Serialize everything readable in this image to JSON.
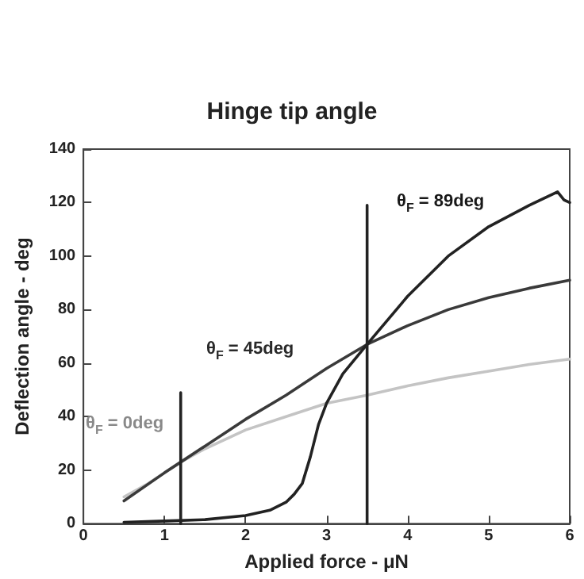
{
  "chart_data": {
    "type": "line",
    "title": "Hinge tip angle",
    "xlabel": "Applied force - μN",
    "ylabel": "Deflection angle - deg",
    "xlim": [
      0,
      6
    ],
    "xticks": [
      0,
      1,
      2,
      3,
      4,
      5,
      6
    ],
    "ylim": [
      0,
      140
    ],
    "yticks": [
      0,
      20,
      40,
      60,
      80,
      100,
      120,
      140
    ],
    "grid": false,
    "marker": "none",
    "line_style": "solid",
    "series": [
      {
        "color": "#c4c4c4",
        "x": [
          0.5,
          0.8,
          1.0,
          1.2,
          1.5,
          2,
          2.5,
          3,
          3.5,
          4,
          4.5,
          5,
          5.5,
          6
        ],
        "values": [
          10,
          15,
          19,
          23,
          28,
          35,
          40,
          45,
          48,
          51.5,
          54.5,
          57,
          59.5,
          61.5
        ]
      },
      {
        "color": "#3a3a3a",
        "x": [
          0.5,
          1,
          1.2,
          1.5,
          2,
          2.5,
          3,
          3.5,
          4,
          4.5,
          5,
          5.5,
          6
        ],
        "values": [
          8.5,
          19,
          23,
          29,
          39,
          48,
          58,
          67,
          74,
          80,
          84.5,
          88,
          91
        ]
      },
      {
        "color": "#222222",
        "x": [
          0.5,
          1,
          1.5,
          2,
          2.3,
          2.5,
          2.6,
          2.7,
          2.8,
          2.9,
          3.0,
          3.2,
          3.5,
          4,
          4.5,
          5,
          5.5,
          5.85,
          5.93,
          6
        ],
        "values": [
          0.5,
          1,
          1.5,
          3,
          5,
          8,
          11,
          15,
          25,
          37,
          45,
          56,
          67,
          85,
          100,
          111,
          119,
          124,
          121,
          120
        ]
      },
      {
        "color": "#222222",
        "x": [
          1.2,
          1.2
        ],
        "values": [
          0,
          49
        ]
      },
      {
        "color": "#222222",
        "x": [
          3.5,
          3.5
        ],
        "values": [
          0,
          119
        ]
      }
    ],
    "annotations": [
      "θ$_{F}$ = 0deg",
      "θ$_{F}$ = 45deg",
      "θ$_{F}$ = 89deg"
    ]
  }
}
